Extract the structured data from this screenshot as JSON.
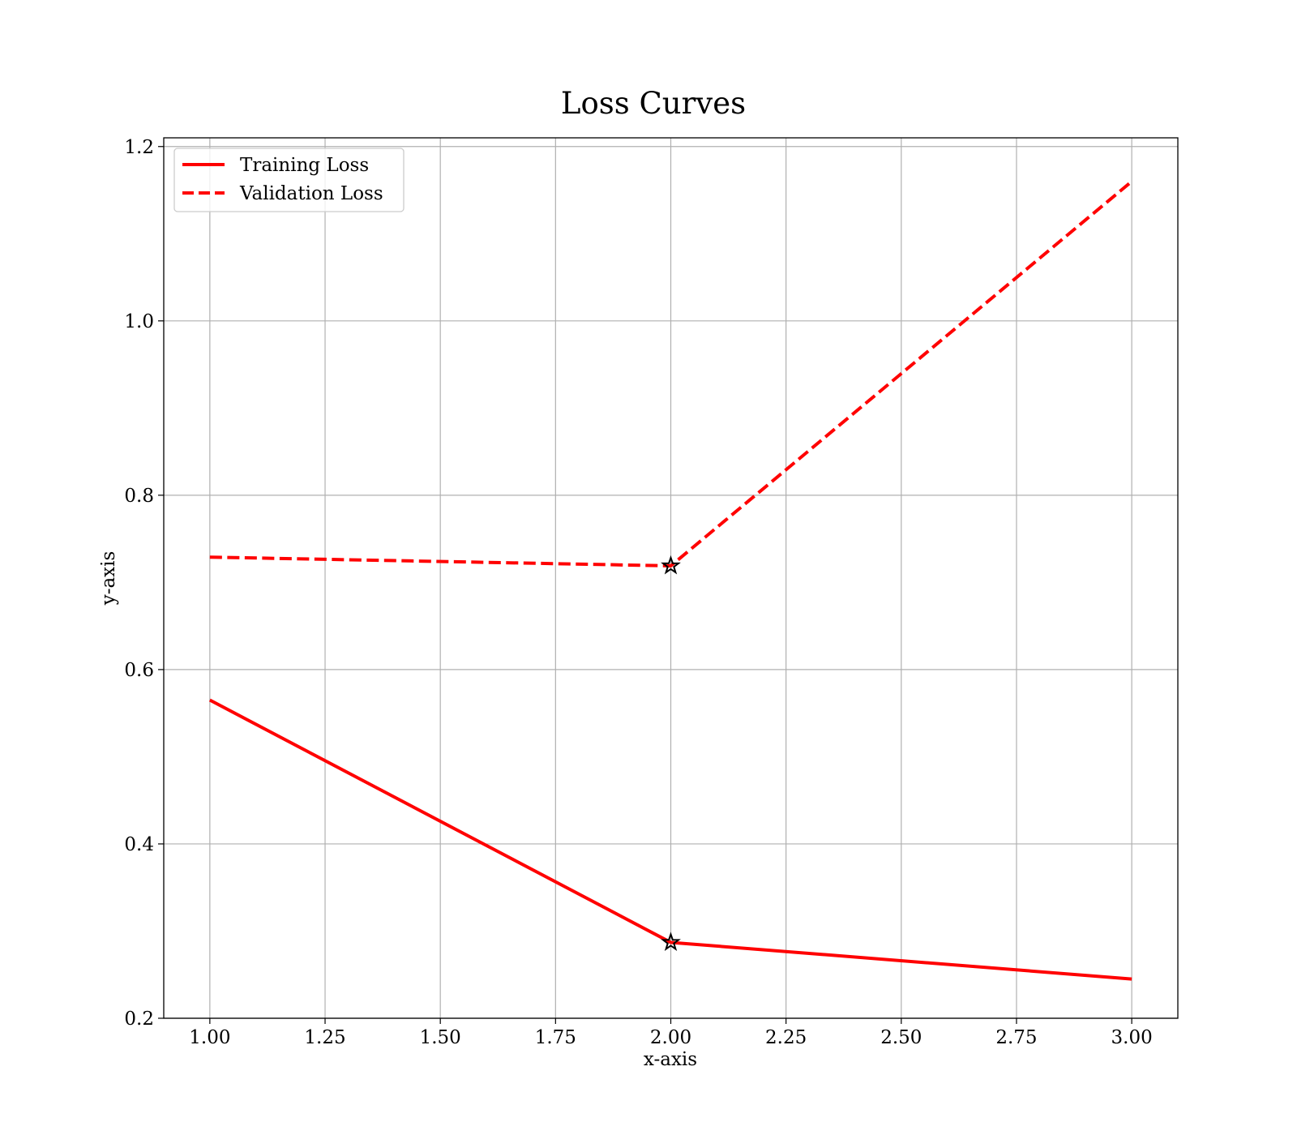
{
  "chart_data": {
    "type": "line",
    "title": "Loss Curves",
    "xlabel": "x-axis",
    "ylabel": "y-axis",
    "xlim": [
      0.9,
      3.1
    ],
    "ylim": [
      0.2,
      1.21
    ],
    "x_ticks": [
      "1.00",
      "1.25",
      "1.50",
      "1.75",
      "2.00",
      "2.25",
      "2.50",
      "2.75",
      "3.00"
    ],
    "y_ticks": [
      "0.2",
      "0.4",
      "0.6",
      "0.8",
      "1.0",
      "1.2"
    ],
    "grid": true,
    "legend_position": "top-left",
    "x": [
      1,
      2,
      3
    ],
    "series": [
      {
        "name": "Training Loss",
        "values": [
          0.565,
          0.287,
          0.245
        ],
        "color": "#ff0000",
        "line_style": "solid",
        "marker_at_x": 2
      },
      {
        "name": "Validation Loss",
        "values": [
          0.729,
          0.719,
          1.16
        ],
        "color": "#ff0000",
        "line_style": "dashed",
        "marker_at_x": 2
      }
    ],
    "marker": {
      "shape": "star",
      "color": "#000000"
    }
  }
}
